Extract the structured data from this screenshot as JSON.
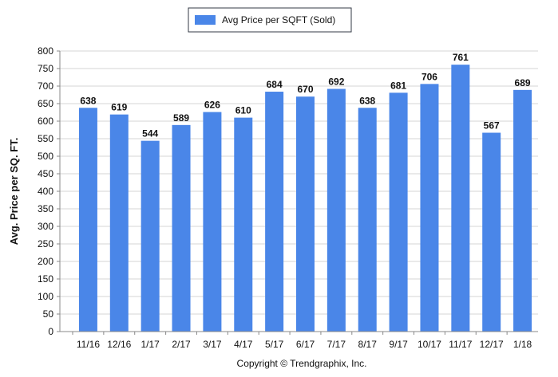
{
  "chart_data": {
    "type": "bar",
    "title": "",
    "xlabel": "",
    "ylabel": "Avg. Price per SQ. FT.",
    "categories": [
      "11/16",
      "12/16",
      "1/17",
      "2/17",
      "3/17",
      "4/17",
      "5/17",
      "6/17",
      "7/17",
      "8/17",
      "9/17",
      "10/17",
      "11/17",
      "12/17",
      "1/18"
    ],
    "series": [
      {
        "name": "Avg Price per SQFT (Sold)",
        "color": "#4a86e8",
        "values": [
          638,
          619,
          544,
          589,
          626,
          610,
          684,
          670,
          692,
          638,
          681,
          706,
          761,
          567,
          689
        ]
      }
    ],
    "ylim": [
      0,
      800
    ],
    "yticks": [
      0,
      50,
      100,
      150,
      200,
      250,
      300,
      350,
      400,
      450,
      500,
      550,
      600,
      650,
      700,
      750,
      800
    ],
    "grid": true,
    "legend_position": "top-center",
    "show_data_labels": true
  },
  "footer": {
    "copyright": "Copyright © Trendgraphix, Inc."
  }
}
